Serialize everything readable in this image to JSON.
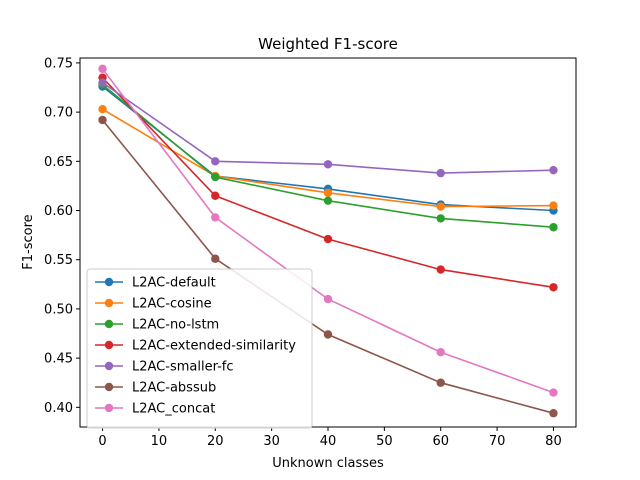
{
  "chart_data": {
    "type": "line",
    "title": "Weighted F1-score",
    "xlabel": "Unknown classes",
    "ylabel": "F1-score",
    "x": [
      0,
      20,
      40,
      60,
      80
    ],
    "xlim": [
      -4,
      84
    ],
    "ylim": [
      0.38,
      0.755
    ],
    "xticks": [
      0,
      10,
      20,
      30,
      40,
      50,
      60,
      70,
      80
    ],
    "yticks": [
      0.4,
      0.45,
      0.5,
      0.55,
      0.6,
      0.65,
      0.7,
      0.75
    ],
    "grid": false,
    "legend_position": "lower-left",
    "series": [
      {
        "name": "L2AC-default",
        "color": "#1f77b4",
        "values": [
          0.726,
          0.635,
          0.622,
          0.606,
          0.6
        ]
      },
      {
        "name": "L2AC-cosine",
        "color": "#ff7f0e",
        "values": [
          0.703,
          0.635,
          0.618,
          0.604,
          0.605
        ]
      },
      {
        "name": "L2AC-no-lstm",
        "color": "#2ca02c",
        "values": [
          0.728,
          0.634,
          0.61,
          0.592,
          0.583
        ]
      },
      {
        "name": "L2AC-extended-similarity",
        "color": "#d62728",
        "values": [
          0.735,
          0.615,
          0.571,
          0.54,
          0.522
        ]
      },
      {
        "name": "L2AC-smaller-fc",
        "color": "#9467bd",
        "values": [
          0.73,
          0.65,
          0.647,
          0.638,
          0.641
        ]
      },
      {
        "name": "L2AC-abssub",
        "color": "#8c564b",
        "values": [
          0.692,
          0.551,
          0.474,
          0.425,
          0.394
        ]
      },
      {
        "name": "L2AC_concat",
        "color": "#e377c2",
        "values": [
          0.744,
          0.593,
          0.51,
          0.456,
          0.415
        ]
      }
    ]
  }
}
